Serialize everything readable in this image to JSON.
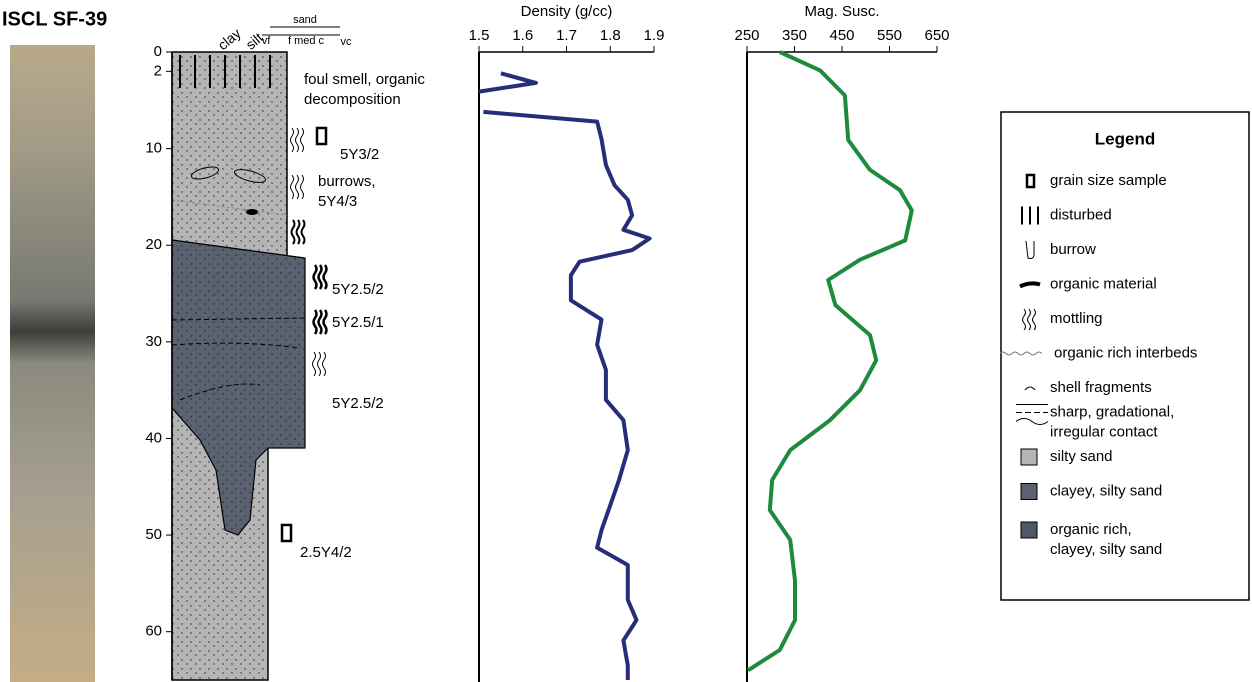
{
  "title": "ISCL SF-39",
  "core_log": {
    "depth_ticks": [
      0,
      2,
      10,
      20,
      30,
      40,
      50,
      60
    ],
    "depth_lim": [
      0,
      65
    ],
    "grain_size": [
      "clay",
      "silt",
      "sand",
      "vf",
      "f med c",
      "vc"
    ],
    "annotations": [
      [
        "foul smell, organic",
        "decomposition"
      ],
      [
        "5Y3/2"
      ],
      [
        "burrows,",
        "5Y4/3"
      ],
      [
        "5Y2.5/2"
      ],
      [
        "5Y2.5/1"
      ],
      [
        "5Y2.5/2"
      ],
      [
        "2.5Y4/2"
      ]
    ]
  },
  "chart_data": [
    {
      "type": "line",
      "title": "Density (g/cc)",
      "color": "#262e7a",
      "y": [
        2.2,
        3.2,
        4.1,
        null,
        6.2,
        7.2,
        9,
        11.7,
        13.8,
        15.3,
        16.9,
        18.4,
        19.3,
        20.5,
        21.7,
        23.1,
        25.7,
        27.7,
        30.3,
        32.9,
        36,
        38.1,
        41.2,
        44.3,
        46.9,
        49.5,
        51.3,
        53.1,
        56.7,
        58.8,
        60.9,
        63.5,
        65
      ],
      "values": [
        1.55,
        1.63,
        1.5,
        null,
        1.51,
        1.77,
        1.78,
        1.79,
        1.81,
        1.84,
        1.85,
        1.83,
        1.89,
        1.85,
        1.73,
        1.71,
        1.71,
        1.78,
        1.77,
        1.79,
        1.79,
        1.83,
        1.84,
        1.82,
        1.8,
        1.78,
        1.77,
        1.84,
        1.84,
        1.86,
        1.83,
        1.84,
        1.84
      ],
      "xlim": [
        1.5,
        1.9
      ],
      "xticks": [
        1.5,
        1.6,
        1.7,
        1.8,
        1.9
      ],
      "ylim": [
        0,
        65
      ]
    },
    {
      "type": "line",
      "title": "Mag. Susc.",
      "color": "#1e8a3c",
      "y": [
        0,
        1.9,
        4.5,
        9.1,
        12.2,
        14.3,
        16.4,
        19.5,
        21.5,
        23.6,
        26.2,
        29.3,
        31.9,
        35,
        38.1,
        41.2,
        44.3,
        47.4,
        50.5,
        54.7,
        58.8,
        61.9,
        64
      ],
      "values": [
        319,
        404,
        456,
        463,
        509,
        572,
        597,
        583,
        488,
        421,
        436,
        509,
        522,
        488,
        425,
        341,
        303,
        298,
        341,
        351,
        351,
        319,
        252
      ],
      "xlim": [
        250,
        650
      ],
      "xticks": [
        250,
        350,
        450,
        550,
        650
      ],
      "ylim": [
        0,
        65
      ]
    }
  ],
  "legend": {
    "title": "Legend",
    "items": [
      [
        "grain size sample"
      ],
      [
        "disturbed"
      ],
      [
        "burrow"
      ],
      [
        "organic material"
      ],
      [
        "mottling"
      ],
      [
        "organic rich interbeds"
      ],
      [
        "shell fragments"
      ],
      [
        "sharp, gradational,",
        "irregular contact"
      ],
      [
        "silty sand"
      ],
      [
        "clayey, silty sand"
      ],
      [
        "organic rich,",
        "clayey, silty sand"
      ]
    ]
  }
}
